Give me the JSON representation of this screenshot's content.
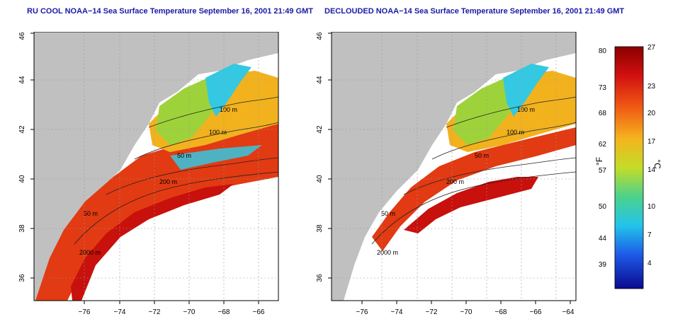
{
  "panels": [
    {
      "title": "RU COOL NOAA−14 Sea Surface Temperature September 16, 2001 21:49 GMT",
      "contour_labels": [
        "100 m",
        "100 m",
        "50 m",
        "200 m",
        "50 m",
        "2000 m"
      ]
    },
    {
      "title": "DECLOUDED NOAA−14 Sea Surface Temperature September 16, 2001 21:49 GMT",
      "contour_labels": [
        "100 m",
        "100 m",
        "50 m",
        "200 m",
        "50 m",
        "2000 m"
      ]
    }
  ],
  "axes": {
    "x_ticks": [
      "−76",
      "−74",
      "−72",
      "−70",
      "−68",
      "−66",
      "−64"
    ],
    "y_ticks": [
      "36",
      "38",
      "40",
      "42",
      "44",
      "46"
    ]
  },
  "colorbar": {
    "fahrenheit_ticks": [
      "80",
      "73",
      "68",
      "62",
      "57",
      "50",
      "44",
      "39"
    ],
    "celsius_ticks": [
      "27",
      "23",
      "20",
      "17",
      "14",
      "10",
      "7",
      "4"
    ],
    "fahrenheit_label": "°F",
    "celsius_label": "°C"
  },
  "colors": {
    "land": "#c0c0c0",
    "warm": "#e23a12",
    "hot": "#c8100c",
    "mid": "#f2b21e",
    "cool": "#9ed23a",
    "cold": "#34c8e2",
    "title": "#1a1aa6"
  }
}
